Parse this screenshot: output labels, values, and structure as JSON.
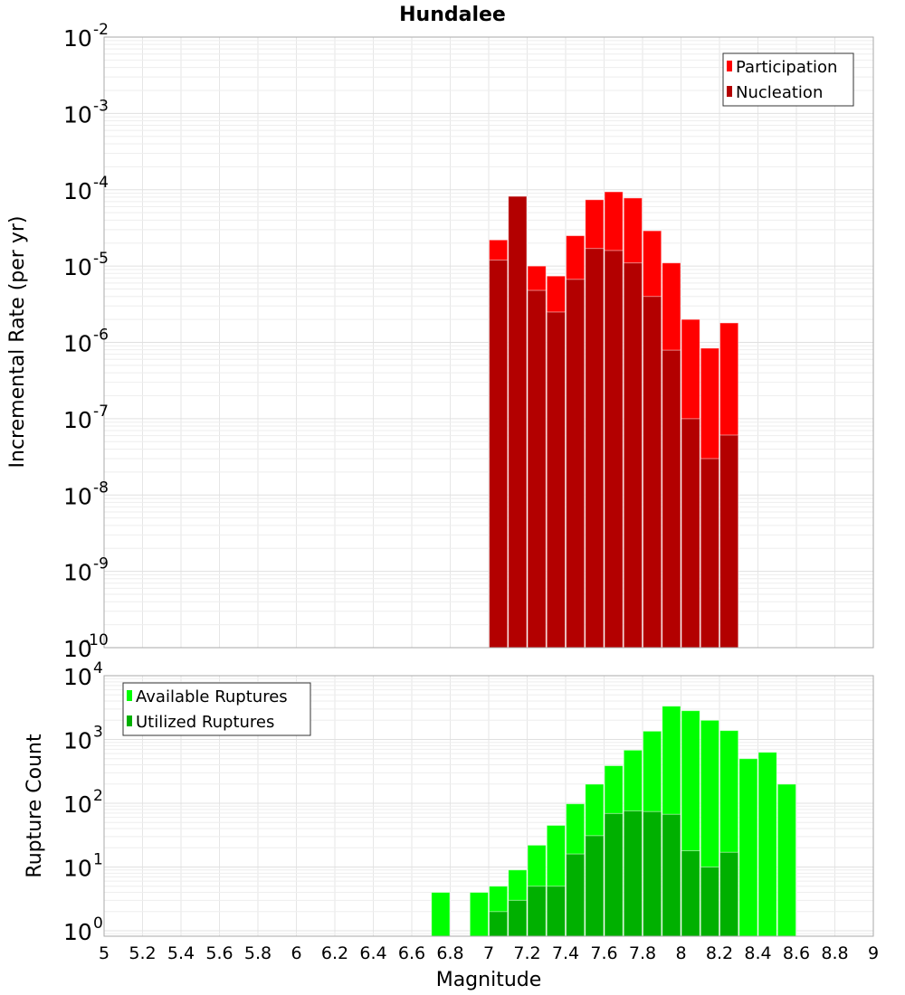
{
  "chart_data": [
    {
      "type": "bar",
      "title": "Hundalee",
      "xlabel": "Magnitude",
      "ylabel": "Incremental Rate (per yr)",
      "yscale": "log",
      "ylim": [
        1e-10,
        0.01
      ],
      "xlim": [
        5,
        9
      ],
      "bin_width": 0.1,
      "grid": true,
      "legend_placement": "top-right",
      "x": [
        7.05,
        7.15,
        7.25,
        7.35,
        7.45,
        7.55,
        7.65,
        7.75,
        7.85,
        7.95,
        8.05,
        8.15,
        8.25
      ],
      "series": [
        {
          "name": "Participation",
          "color": "#ff0000",
          "values": [
            2.2e-05,
            8.2e-05,
            1e-05,
            7.4e-06,
            2.5e-05,
            7.4e-05,
            9.4e-05,
            7.8e-05,
            2.9e-05,
            1.1e-05,
            2e-06,
            8.4e-07,
            1.8e-06
          ]
        },
        {
          "name": "Nucleation",
          "color": "#b30000",
          "values": [
            1.2e-05,
            8.2e-05,
            4.8e-06,
            2.5e-06,
            6.7e-06,
            1.7e-05,
            1.6e-05,
            1.1e-05,
            4e-06,
            7.9e-07,
            1e-07,
            3e-08,
            6.1e-08
          ]
        }
      ],
      "yticks": [
        {
          "base": "10",
          "exp": "-2"
        },
        {
          "base": "10",
          "exp": "-3"
        },
        {
          "base": "10",
          "exp": "-4"
        },
        {
          "base": "10",
          "exp": "-5"
        },
        {
          "base": "10",
          "exp": "-6"
        },
        {
          "base": "10",
          "exp": "-7"
        },
        {
          "base": "10",
          "exp": "-8"
        },
        {
          "base": "10",
          "exp": "-9"
        },
        {
          "base": "10",
          "exp": "-10"
        }
      ]
    },
    {
      "type": "bar",
      "title": "",
      "xlabel": "Magnitude",
      "ylabel": "Rupture Count",
      "yscale": "log",
      "ylim": [
        0.8,
        10000
      ],
      "xlim": [
        5,
        9
      ],
      "bin_width": 0.1,
      "grid": true,
      "legend_placement": "top-left",
      "x": [
        6.75,
        6.95,
        7.05,
        7.15,
        7.25,
        7.35,
        7.45,
        7.55,
        7.65,
        7.75,
        7.85,
        7.95,
        8.05,
        8.15,
        8.25,
        8.35,
        8.45,
        8.55
      ],
      "series": [
        {
          "name": "Available Ruptures",
          "color": "#00ff00",
          "values": [
            4,
            4,
            5,
            9,
            22,
            45,
            98,
            199,
            388,
            680,
            1350,
            3330,
            2830,
            2000,
            1380,
            500,
            630,
            199
          ]
        },
        {
          "name": "Utilized Ruptures",
          "color": "#00b000",
          "values": [
            0,
            0,
            2,
            3,
            5,
            5,
            16,
            31,
            69,
            76,
            74,
            67,
            18,
            10,
            17,
            0,
            0,
            0
          ]
        }
      ],
      "yticks": [
        {
          "base": "10",
          "exp": "4"
        },
        {
          "base": "10",
          "exp": "3"
        },
        {
          "base": "10",
          "exp": "2"
        },
        {
          "base": "10",
          "exp": "1"
        },
        {
          "base": "10",
          "exp": "0"
        }
      ],
      "xticks": [
        "5",
        "5.2",
        "5.4",
        "5.6",
        "5.8",
        "6",
        "6.2",
        "6.4",
        "6.6",
        "6.8",
        "7",
        "7.2",
        "7.4",
        "7.6",
        "7.8",
        "8",
        "8.2",
        "8.4",
        "8.6",
        "8.8",
        "9"
      ]
    }
  ]
}
